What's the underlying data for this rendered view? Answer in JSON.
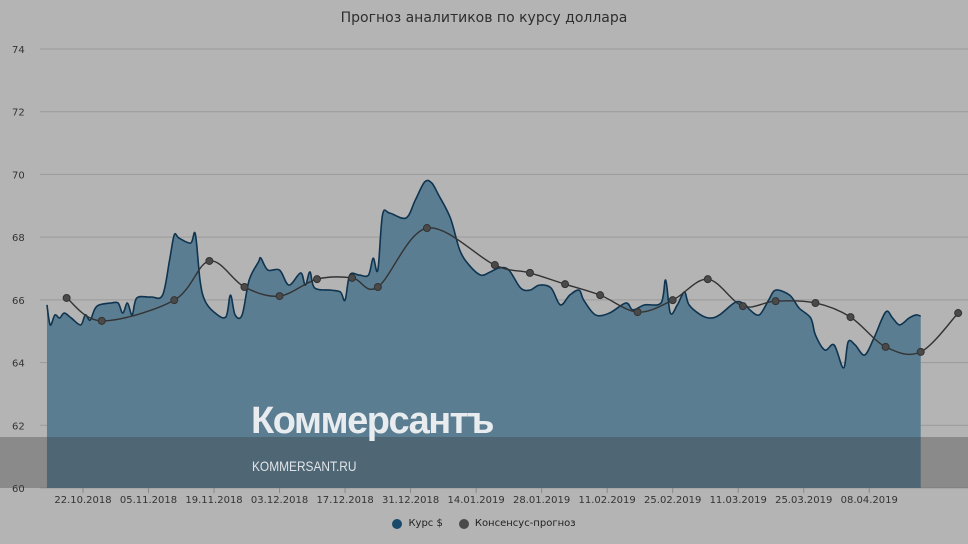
{
  "chart_data": {
    "type": "area",
    "title": "Прогноз аналитиков по курсу доллара",
    "xlabel": "",
    "ylabel": "",
    "ylim": [
      60,
      74
    ],
    "yticks": [
      60,
      62,
      64,
      66,
      68,
      70,
      72,
      74
    ],
    "x_unit": "days since 22.10.2018",
    "xticks": [
      {
        "day": 0,
        "label": "22.10.2018"
      },
      {
        "day": 14,
        "label": "05.11.2018"
      },
      {
        "day": 28,
        "label": "19.11.2018"
      },
      {
        "day": 42,
        "label": "03.12.2018"
      },
      {
        "day": 56,
        "label": "17.12.2018"
      },
      {
        "day": 70,
        "label": "31.12.2018"
      },
      {
        "day": 84,
        "label": "14.01.2019"
      },
      {
        "day": 98,
        "label": "28.01.2019"
      },
      {
        "day": 112,
        "label": "11.02.2019"
      },
      {
        "day": 126,
        "label": "25.02.2019"
      },
      {
        "day": 140,
        "label": "11.03.2019"
      },
      {
        "day": 154,
        "label": "25.03.2019"
      },
      {
        "day": 168,
        "label": "08.04.2019"
      }
    ],
    "grid": true,
    "legend_position": "bottom-center",
    "series": [
      {
        "name": "Курс $",
        "color": "#1a4a6b",
        "type": "area",
        "points": [
          [
            -7.7,
            65.84
          ],
          [
            -7,
            65.2
          ],
          [
            -6,
            65.52
          ],
          [
            -5,
            65.42
          ],
          [
            -4,
            65.58
          ],
          [
            -2.5,
            65.42
          ],
          [
            -0.5,
            65.2
          ],
          [
            0.5,
            65.52
          ],
          [
            1.5,
            65.35
          ],
          [
            2.5,
            65.7
          ],
          [
            3.5,
            65.84
          ],
          [
            6,
            65.9
          ],
          [
            7.5,
            65.9
          ],
          [
            8.5,
            65.58
          ],
          [
            9.5,
            65.9
          ],
          [
            10.5,
            65.52
          ],
          [
            11.5,
            66.06
          ],
          [
            14.5,
            66.09
          ],
          [
            17,
            66.15
          ],
          [
            18.5,
            67.27
          ],
          [
            19.5,
            68.07
          ],
          [
            20.5,
            67.97
          ],
          [
            23,
            67.81
          ],
          [
            24,
            68.1
          ],
          [
            25,
            66.63
          ],
          [
            26,
            65.99
          ],
          [
            28,
            65.61
          ],
          [
            30.5,
            65.45
          ],
          [
            31.5,
            66.15
          ],
          [
            32.5,
            65.52
          ],
          [
            34,
            65.52
          ],
          [
            35.5,
            66.63
          ],
          [
            37.5,
            67.21
          ],
          [
            38,
            67.33
          ],
          [
            39.5,
            66.95
          ],
          [
            42,
            66.95
          ],
          [
            44,
            66.47
          ],
          [
            46.5,
            66.86
          ],
          [
            47.5,
            66.47
          ],
          [
            48.5,
            66.89
          ],
          [
            49.5,
            66.38
          ],
          [
            53,
            66.31
          ],
          [
            55,
            66.25
          ],
          [
            56,
            65.99
          ],
          [
            57,
            66.79
          ],
          [
            59,
            66.79
          ],
          [
            61,
            66.79
          ],
          [
            62,
            67.33
          ],
          [
            63,
            66.95
          ],
          [
            64,
            68.71
          ],
          [
            65.5,
            68.77
          ],
          [
            69,
            68.61
          ],
          [
            71,
            69.18
          ],
          [
            73,
            69.76
          ],
          [
            74.5,
            69.73
          ],
          [
            76,
            69.34
          ],
          [
            78.5,
            68.61
          ],
          [
            80.5,
            67.59
          ],
          [
            82.5,
            67.11
          ],
          [
            85,
            66.79
          ],
          [
            87,
            66.89
          ],
          [
            89,
            67.02
          ],
          [
            91,
            66.95
          ],
          [
            93.5,
            66.38
          ],
          [
            95.5,
            66.31
          ],
          [
            97.5,
            66.47
          ],
          [
            100,
            66.38
          ],
          [
            102,
            65.84
          ],
          [
            104,
            66.15
          ],
          [
            106,
            66.31
          ],
          [
            107,
            65.99
          ],
          [
            109.5,
            65.52
          ],
          [
            112.5,
            65.58
          ],
          [
            116,
            65.9
          ],
          [
            117.5,
            65.68
          ],
          [
            120,
            65.84
          ],
          [
            123.5,
            65.9
          ],
          [
            124.5,
            66.63
          ],
          [
            125.5,
            65.58
          ],
          [
            127,
            65.84
          ],
          [
            128.5,
            66.25
          ],
          [
            129.5,
            65.84
          ],
          [
            132,
            65.52
          ],
          [
            134,
            65.42
          ],
          [
            136,
            65.52
          ],
          [
            139.5,
            65.93
          ],
          [
            141.5,
            65.84
          ],
          [
            142.5,
            65.68
          ],
          [
            144.5,
            65.52
          ],
          [
            146.5,
            65.99
          ],
          [
            148,
            66.31
          ],
          [
            151,
            66.15
          ],
          [
            153,
            65.74
          ],
          [
            155.5,
            65.42
          ],
          [
            156.5,
            64.88
          ],
          [
            158.5,
            64.4
          ],
          [
            160.5,
            64.56
          ],
          [
            162.5,
            63.83
          ],
          [
            163.5,
            64.66
          ],
          [
            165,
            64.56
          ],
          [
            167,
            64.24
          ],
          [
            169,
            64.78
          ],
          [
            171.5,
            65.61
          ],
          [
            173,
            65.42
          ],
          [
            174.5,
            65.2
          ],
          [
            176.5,
            65.42
          ],
          [
            178,
            65.52
          ],
          [
            179,
            65.48
          ]
        ]
      },
      {
        "name": "Консенсус-прогноз",
        "color": "#4a4a4a",
        "type": "line",
        "points": [
          [
            -3.5,
            66.06
          ],
          [
            4,
            65.33
          ],
          [
            19.5,
            65.99
          ],
          [
            27,
            67.24
          ],
          [
            34.5,
            66.41
          ],
          [
            42,
            66.12
          ],
          [
            50,
            66.66
          ],
          [
            57.5,
            66.7
          ],
          [
            63,
            66.41
          ],
          [
            73.5,
            68.29
          ],
          [
            88,
            67.11
          ],
          [
            95.5,
            66.86
          ],
          [
            103,
            66.5
          ],
          [
            110.5,
            66.15
          ],
          [
            118.5,
            65.61
          ],
          [
            126,
            65.99
          ],
          [
            133.5,
            66.66
          ],
          [
            141,
            65.8
          ],
          [
            148,
            65.96
          ],
          [
            156.5,
            65.9
          ],
          [
            164,
            65.45
          ],
          [
            171.5,
            64.5
          ],
          [
            179,
            64.34
          ],
          [
            187,
            65.58
          ]
        ]
      }
    ]
  },
  "watermark": {
    "brand": "Коммерсантъ",
    "site": "KOMMERSANT.RU"
  }
}
